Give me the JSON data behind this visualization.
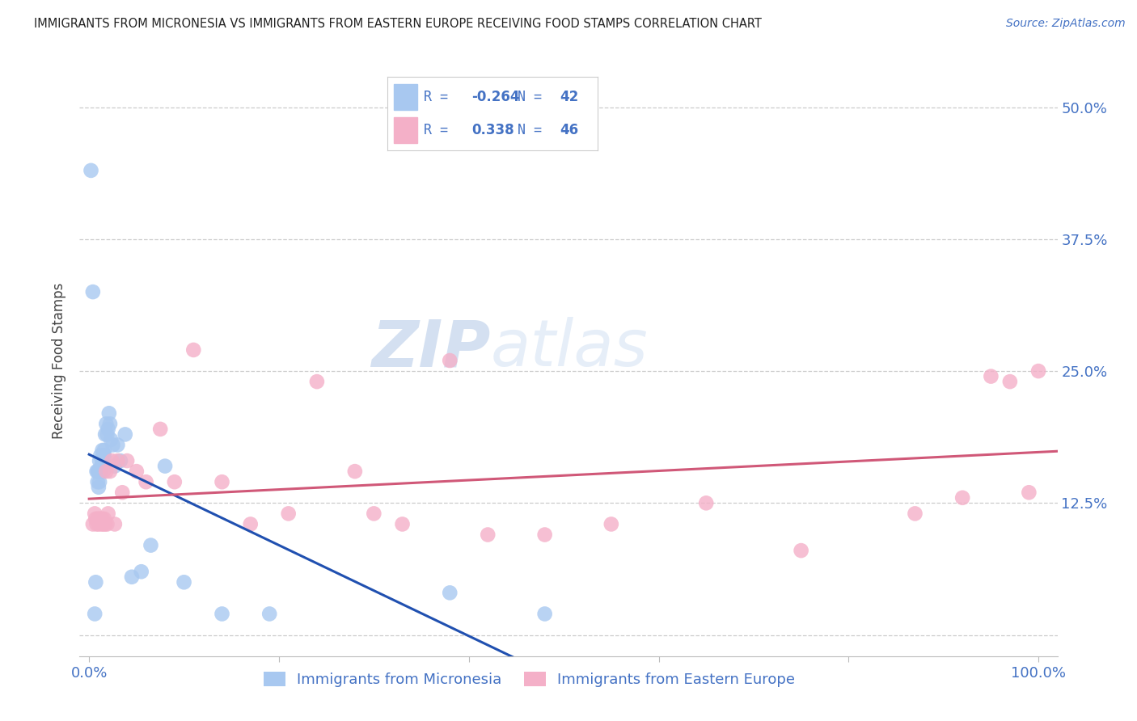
{
  "title": "IMMIGRANTS FROM MICRONESIA VS IMMIGRANTS FROM EASTERN EUROPE RECEIVING FOOD STAMPS CORRELATION CHART",
  "source": "Source: ZipAtlas.com",
  "ylabel": "Receiving Food Stamps",
  "yticks": [
    0.0,
    0.125,
    0.25,
    0.375,
    0.5
  ],
  "ytick_labels": [
    "",
    "12.5%",
    "25.0%",
    "37.5%",
    "50.0%"
  ],
  "xticks": [
    0.0,
    0.2,
    0.4,
    0.6,
    0.8,
    1.0
  ],
  "xlim": [
    -0.01,
    1.02
  ],
  "ylim": [
    -0.02,
    0.54
  ],
  "series1_label": "Immigrants from Micronesia",
  "series2_label": "Immigrants from Eastern Europe",
  "color_blue": "#a8c8f0",
  "color_blue_line": "#2050b0",
  "color_pink": "#f4b0c8",
  "color_pink_line": "#d05878",
  "color_text_blue": "#4472c4",
  "watermark_zip": "ZIP",
  "watermark_atlas": "atlas",
  "blue_x": [
    0.002,
    0.004,
    0.006,
    0.007,
    0.008,
    0.009,
    0.009,
    0.01,
    0.01,
    0.011,
    0.011,
    0.012,
    0.012,
    0.013,
    0.013,
    0.014,
    0.014,
    0.015,
    0.015,
    0.016,
    0.016,
    0.017,
    0.018,
    0.019,
    0.02,
    0.021,
    0.022,
    0.023,
    0.025,
    0.027,
    0.03,
    0.033,
    0.038,
    0.045,
    0.055,
    0.065,
    0.08,
    0.1,
    0.14,
    0.19,
    0.38,
    0.48
  ],
  "blue_y": [
    0.44,
    0.325,
    0.02,
    0.05,
    0.155,
    0.155,
    0.145,
    0.155,
    0.14,
    0.145,
    0.165,
    0.155,
    0.17,
    0.155,
    0.16,
    0.165,
    0.175,
    0.17,
    0.155,
    0.17,
    0.175,
    0.19,
    0.2,
    0.19,
    0.195,
    0.21,
    0.2,
    0.185,
    0.18,
    0.16,
    0.18,
    0.165,
    0.19,
    0.055,
    0.06,
    0.085,
    0.16,
    0.05,
    0.02,
    0.02,
    0.04,
    0.02
  ],
  "pink_x": [
    0.004,
    0.006,
    0.007,
    0.008,
    0.009,
    0.01,
    0.011,
    0.012,
    0.013,
    0.014,
    0.015,
    0.016,
    0.017,
    0.018,
    0.019,
    0.02,
    0.022,
    0.024,
    0.027,
    0.03,
    0.035,
    0.04,
    0.05,
    0.06,
    0.075,
    0.09,
    0.11,
    0.14,
    0.17,
    0.21,
    0.24,
    0.28,
    0.3,
    0.33,
    0.38,
    0.42,
    0.48,
    0.55,
    0.65,
    0.75,
    0.87,
    0.92,
    0.95,
    0.97,
    0.99,
    1.0
  ],
  "pink_y": [
    0.105,
    0.115,
    0.11,
    0.105,
    0.11,
    0.105,
    0.11,
    0.11,
    0.105,
    0.11,
    0.105,
    0.11,
    0.105,
    0.155,
    0.105,
    0.115,
    0.155,
    0.165,
    0.105,
    0.165,
    0.135,
    0.165,
    0.155,
    0.145,
    0.195,
    0.145,
    0.27,
    0.145,
    0.105,
    0.115,
    0.24,
    0.155,
    0.115,
    0.105,
    0.26,
    0.095,
    0.095,
    0.105,
    0.125,
    0.08,
    0.115,
    0.13,
    0.245,
    0.24,
    0.135,
    0.25
  ]
}
